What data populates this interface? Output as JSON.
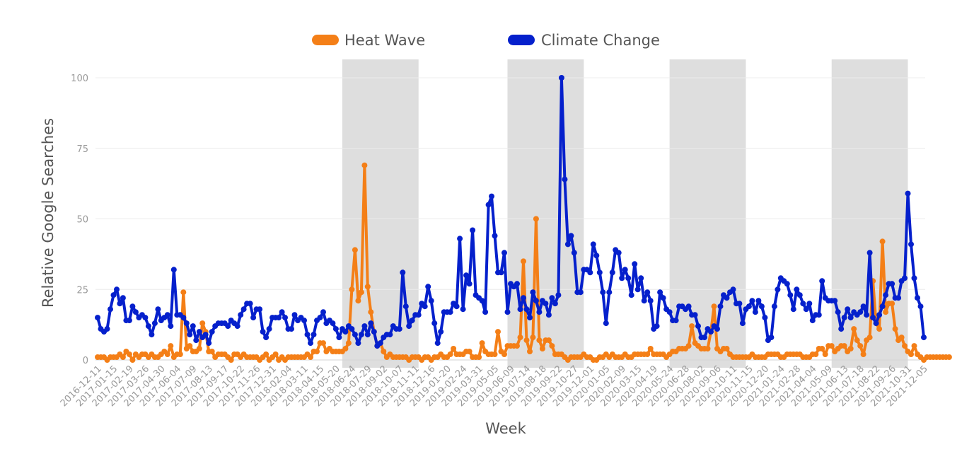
{
  "chart_data": {
    "type": "line",
    "title": "",
    "xlabel": "Week",
    "ylabel": "Relative Google Searches",
    "ylim": [
      0,
      100
    ],
    "yticks": [
      0,
      25,
      50,
      75,
      100
    ],
    "grid": "horizontal",
    "legend_position": "top-center",
    "x_start": "2016-12-11",
    "x_end": "2021-12-05",
    "x_step": "weekly",
    "xtick_labels": [
      "2016-12-11",
      "2017-01-15",
      "2017-02-19",
      "2017-03-26",
      "2017-04-30",
      "2017-06-04",
      "2017-07-09",
      "2017-08-13",
      "2017-09-17",
      "2017-10-22",
      "2017-11-26",
      "2017-12-31",
      "2018-02-04",
      "2018-03-11",
      "2018-04-15",
      "2018-05-20",
      "2018-06-24",
      "2018-07-29",
      "2018-09-02",
      "2018-10-07",
      "2018-11-11",
      "2018-12-16",
      "2019-01-20",
      "2019-02-24",
      "2019-03-31",
      "2019-05-05",
      "2019-06-09",
      "2019-07-14",
      "2019-08-18",
      "2019-09-22",
      "2019-10-27",
      "2019-12-01",
      "2020-01-05",
      "2020-02-09",
      "2020-03-15",
      "2020-04-19",
      "2020-05-24",
      "2020-06-28",
      "2020-08-02",
      "2020-09-06",
      "2020-10-11",
      "2020-11-15",
      "2020-12-20",
      "2021-01-24",
      "2021-02-28",
      "2021-04-04",
      "2021-05-09",
      "2021-06-13",
      "2021-07-18",
      "2021-08-22",
      "2021-09-26",
      "2021-10-31",
      "2021-12-05"
    ],
    "shaded_periods": [
      {
        "start": "2018-06-03",
        "end": "2018-11-18"
      },
      {
        "start": "2019-06-02",
        "end": "2019-11-17"
      },
      {
        "start": "2020-05-24",
        "end": "2020-11-08"
      },
      {
        "start": "2021-05-16",
        "end": "2021-10-31"
      }
    ],
    "series": [
      {
        "name": "Heat Wave",
        "color": "#f47f17",
        "values": [
          1,
          1,
          1,
          0,
          1,
          1,
          1,
          2,
          1,
          3,
          2,
          0,
          2,
          1,
          2,
          2,
          1,
          2,
          1,
          1,
          2,
          3,
          2,
          5,
          1,
          2,
          2,
          24,
          4,
          5,
          3,
          3,
          4,
          13,
          10,
          3,
          3,
          1,
          2,
          2,
          2,
          1,
          0,
          2,
          2,
          1,
          2,
          1,
          1,
          1,
          1,
          0,
          1,
          2,
          0,
          1,
          2,
          0,
          1,
          0,
          1,
          1,
          1,
          1,
          1,
          1,
          2,
          1,
          3,
          3,
          6,
          6,
          3,
          4,
          3,
          3,
          3,
          3,
          4,
          6,
          25,
          39,
          21,
          24,
          69,
          26,
          17,
          10,
          5,
          6,
          3,
          1,
          2,
          1,
          1,
          1,
          1,
          1,
          0,
          1,
          1,
          1,
          0,
          1,
          1,
          0,
          1,
          1,
          2,
          1,
          1,
          2,
          4,
          2,
          2,
          2,
          3,
          3,
          1,
          1,
          1,
          6,
          3,
          2,
          2,
          2,
          10,
          3,
          2,
          5,
          5,
          5,
          5,
          8,
          35,
          7,
          3,
          8,
          50,
          7,
          4,
          7,
          7,
          5,
          2,
          2,
          2,
          1,
          0,
          1,
          1,
          1,
          1,
          2,
          1,
          1,
          0,
          0,
          1,
          1,
          2,
          1,
          2,
          1,
          1,
          1,
          2,
          1,
          1,
          2,
          2,
          2,
          2,
          2,
          4,
          2,
          2,
          2,
          2,
          1,
          2,
          3,
          3,
          4,
          4,
          4,
          5,
          12,
          6,
          5,
          4,
          4,
          4,
          10,
          19,
          4,
          3,
          4,
          4,
          2,
          1,
          1,
          1,
          1,
          1,
          1,
          2,
          1,
          1,
          1,
          1,
          2,
          2,
          2,
          2,
          1,
          1,
          2,
          2,
          2,
          2,
          2,
          1,
          1,
          1,
          2,
          2,
          4,
          4,
          2,
          5,
          5,
          3,
          4,
          5,
          5,
          3,
          4,
          11,
          7,
          5,
          2,
          7,
          8,
          28,
          13,
          11,
          42,
          17,
          20,
          20,
          11,
          7,
          8,
          5,
          3,
          2,
          5,
          2,
          1,
          0,
          1,
          1,
          1,
          1,
          1,
          1,
          1,
          1
        ]
      },
      {
        "name": "Climate Change",
        "color": "#0520cc",
        "values": [
          15,
          11,
          10,
          11,
          18,
          23,
          25,
          20,
          22,
          14,
          14,
          19,
          17,
          15,
          16,
          15,
          12,
          9,
          13,
          18,
          14,
          15,
          16,
          12,
          32,
          16,
          16,
          15,
          13,
          9,
          12,
          7,
          10,
          8,
          9,
          6,
          10,
          12,
          13,
          13,
          13,
          12,
          14,
          13,
          12,
          16,
          18,
          20,
          20,
          15,
          18,
          18,
          10,
          8,
          11,
          15,
          15,
          15,
          17,
          15,
          11,
          11,
          16,
          14,
          15,
          14,
          9,
          6,
          9,
          14,
          15,
          17,
          13,
          14,
          13,
          11,
          8,
          11,
          10,
          12,
          11,
          9,
          6,
          9,
          12,
          9,
          13,
          10,
          5,
          6,
          8,
          9,
          9,
          12,
          11,
          11,
          31,
          19,
          12,
          14,
          16,
          16,
          20,
          19,
          26,
          21,
          13,
          6,
          10,
          17,
          17,
          17,
          20,
          19,
          43,
          18,
          30,
          27,
          46,
          23,
          22,
          21,
          17,
          55,
          58,
          44,
          31,
          31,
          38,
          17,
          27,
          26,
          27,
          18,
          22,
          18,
          15,
          24,
          21,
          17,
          21,
          20,
          16,
          22,
          20,
          23,
          100,
          64,
          41,
          44,
          38,
          24,
          24,
          32,
          32,
          31,
          41,
          37,
          31,
          24,
          13,
          24,
          31,
          39,
          38,
          29,
          32,
          29,
          23,
          34,
          25,
          29,
          21,
          24,
          21,
          11,
          12,
          24,
          22,
          18,
          17,
          14,
          14,
          19,
          19,
          18,
          19,
          16,
          16,
          12,
          8,
          8,
          11,
          10,
          12,
          11,
          19,
          23,
          22,
          24,
          25,
          20,
          20,
          13,
          18,
          19,
          21,
          17,
          21,
          19,
          15,
          7,
          8,
          19,
          25,
          29,
          28,
          27,
          23,
          18,
          25,
          23,
          20,
          18,
          20,
          14,
          16,
          16,
          28,
          22,
          21,
          21,
          21,
          17,
          11,
          15,
          18,
          15,
          17,
          16,
          17,
          19,
          16,
          38,
          15,
          13,
          16,
          19,
          23,
          27,
          27,
          22,
          22,
          28,
          29,
          59,
          41,
          29,
          22,
          19,
          8
        ]
      }
    ]
  }
}
